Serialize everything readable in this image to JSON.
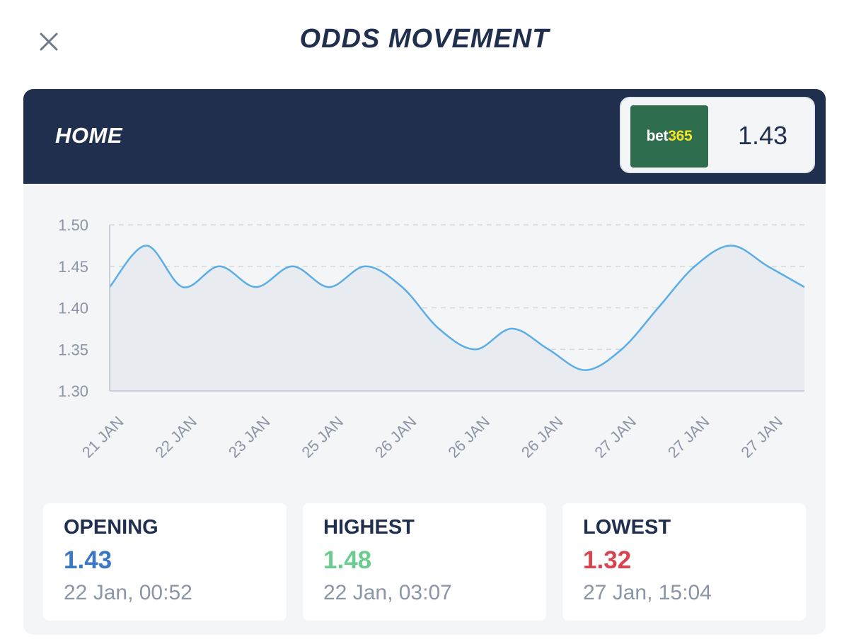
{
  "modal": {
    "title": "ODDS MOVEMENT",
    "close_icon": "close-icon"
  },
  "header": {
    "label": "HOME",
    "bookmaker": {
      "logo_part1": "bet",
      "logo_part2": "365",
      "logo_bg": "#2f6d4f",
      "odds": "1.43"
    }
  },
  "chart_data": {
    "type": "line",
    "x": [
      "21 JAN",
      "22 JAN",
      "23 JAN",
      "25 JAN",
      "26 JAN",
      "26 JAN",
      "26 JAN",
      "27 JAN",
      "27 JAN",
      "27 JAN"
    ],
    "points": [
      1.425,
      1.475,
      1.425,
      1.45,
      1.425,
      1.45,
      1.425,
      1.45,
      1.425,
      1.375,
      1.35,
      1.375,
      1.35,
      1.325,
      1.35,
      1.4,
      1.45,
      1.475,
      1.45,
      1.425
    ],
    "ylim": [
      1.3,
      1.5
    ],
    "yticks": [
      "1.50",
      "1.45",
      "1.40",
      "1.35",
      "1.30"
    ],
    "grid": true,
    "line_color": "#5aaee8",
    "fill_color": "#e8ebf0"
  },
  "stats": [
    {
      "label": "OPENING",
      "value": "1.43",
      "date": "22 Jan, 00:52",
      "color": "#3a78c4"
    },
    {
      "label": "HIGHEST",
      "value": "1.48",
      "date": "22 Jan, 03:07",
      "color": "#6ccb8f"
    },
    {
      "label": "LOWEST",
      "value": "1.32",
      "date": "27 Jan, 15:04",
      "color": "#d64550"
    }
  ]
}
